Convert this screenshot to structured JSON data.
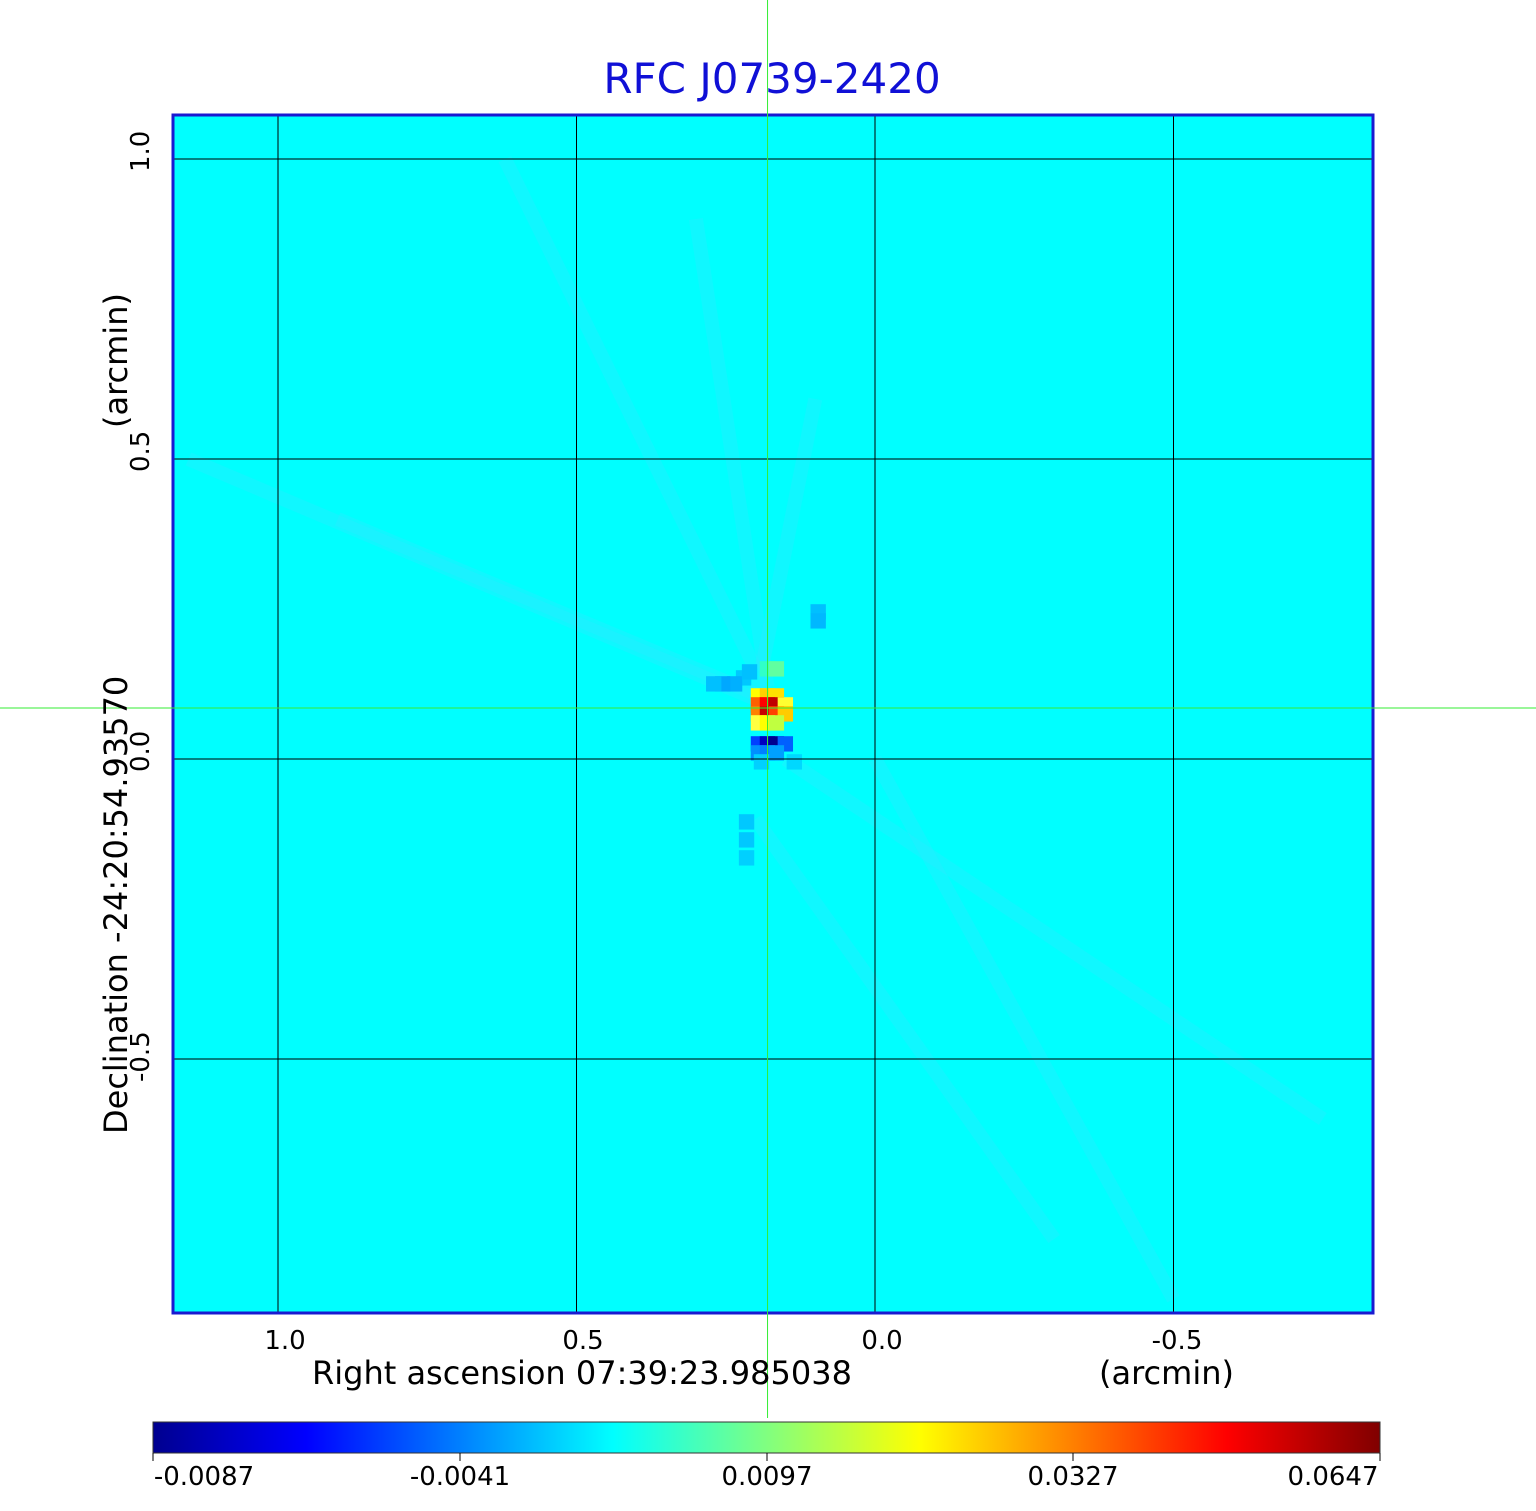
{
  "chart_data": {
    "type": "heatmap",
    "title": "RFC J0739-2420",
    "xlabel": "Right ascension  07:39:23.985038",
    "xunit": "(arcmin)",
    "ylabel": "Declination  -24:20:54.93570",
    "yunit": "(arcmin)",
    "x_ticks": [
      1.0,
      0.5,
      0.0,
      -0.5
    ],
    "x_tick_labels": [
      "1.0",
      "0.5",
      "0.0",
      "-0.5"
    ],
    "y_ticks": [
      1.0,
      0.5,
      0.0,
      -0.5
    ],
    "y_tick_labels": [
      "1.0",
      "0.5",
      "0.0",
      "-0.5"
    ],
    "xlim": [
      1.18,
      -0.83
    ],
    "ylim": [
      -0.93,
      1.08
    ],
    "grid": true,
    "crosshair": {
      "x": 0.18,
      "y": 0.085,
      "color": "#33ee33"
    },
    "colorbar": {
      "ticks": [
        -0.0087,
        -0.0041,
        0.0097,
        0.0327,
        0.0647
      ],
      "tick_labels": [
        "-0.0087",
        "-0.0041",
        "0.0097",
        "0.0327",
        "0.0647"
      ],
      "range": [
        -0.0087,
        0.0647
      ],
      "colormap": "jet"
    },
    "features": [
      {
        "x": 0.18,
        "y": 0.09,
        "value": 0.0647,
        "label": "peak"
      },
      {
        "x": 0.165,
        "y": 0.03,
        "value": -0.0087,
        "label": "minimum"
      }
    ]
  },
  "colors": {
    "background_field": "#00ffff",
    "frame": "#1a1ad0",
    "grid": "#000000",
    "title": "#1010d6"
  }
}
